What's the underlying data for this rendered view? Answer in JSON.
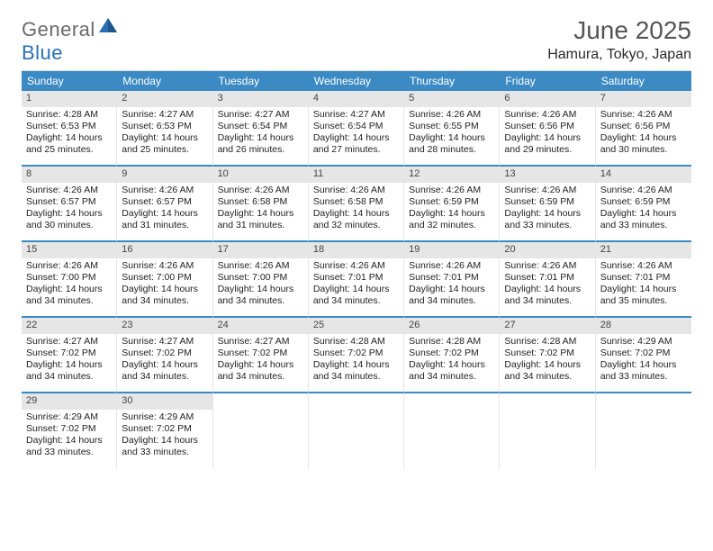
{
  "logo": {
    "word1": "General",
    "word2": "Blue"
  },
  "title": "June 2025",
  "location": "Hamura, Tokyo, Japan",
  "colors": {
    "headerBlue": "#3b8ac4",
    "daynumBg": "#e6e6e6",
    "logoGray": "#6a6a6a",
    "logoBlue": "#2a6fb3"
  },
  "weekdays": [
    "Sunday",
    "Monday",
    "Tuesday",
    "Wednesday",
    "Thursday",
    "Friday",
    "Saturday"
  ],
  "days": [
    {
      "n": "1",
      "sr": "4:28 AM",
      "ss": "6:53 PM",
      "dl": "14 hours and 25 minutes."
    },
    {
      "n": "2",
      "sr": "4:27 AM",
      "ss": "6:53 PM",
      "dl": "14 hours and 25 minutes."
    },
    {
      "n": "3",
      "sr": "4:27 AM",
      "ss": "6:54 PM",
      "dl": "14 hours and 26 minutes."
    },
    {
      "n": "4",
      "sr": "4:27 AM",
      "ss": "6:54 PM",
      "dl": "14 hours and 27 minutes."
    },
    {
      "n": "5",
      "sr": "4:26 AM",
      "ss": "6:55 PM",
      "dl": "14 hours and 28 minutes."
    },
    {
      "n": "6",
      "sr": "4:26 AM",
      "ss": "6:56 PM",
      "dl": "14 hours and 29 minutes."
    },
    {
      "n": "7",
      "sr": "4:26 AM",
      "ss": "6:56 PM",
      "dl": "14 hours and 30 minutes."
    },
    {
      "n": "8",
      "sr": "4:26 AM",
      "ss": "6:57 PM",
      "dl": "14 hours and 30 minutes."
    },
    {
      "n": "9",
      "sr": "4:26 AM",
      "ss": "6:57 PM",
      "dl": "14 hours and 31 minutes."
    },
    {
      "n": "10",
      "sr": "4:26 AM",
      "ss": "6:58 PM",
      "dl": "14 hours and 31 minutes."
    },
    {
      "n": "11",
      "sr": "4:26 AM",
      "ss": "6:58 PM",
      "dl": "14 hours and 32 minutes."
    },
    {
      "n": "12",
      "sr": "4:26 AM",
      "ss": "6:59 PM",
      "dl": "14 hours and 32 minutes."
    },
    {
      "n": "13",
      "sr": "4:26 AM",
      "ss": "6:59 PM",
      "dl": "14 hours and 33 minutes."
    },
    {
      "n": "14",
      "sr": "4:26 AM",
      "ss": "6:59 PM",
      "dl": "14 hours and 33 minutes."
    },
    {
      "n": "15",
      "sr": "4:26 AM",
      "ss": "7:00 PM",
      "dl": "14 hours and 34 minutes."
    },
    {
      "n": "16",
      "sr": "4:26 AM",
      "ss": "7:00 PM",
      "dl": "14 hours and 34 minutes."
    },
    {
      "n": "17",
      "sr": "4:26 AM",
      "ss": "7:00 PM",
      "dl": "14 hours and 34 minutes."
    },
    {
      "n": "18",
      "sr": "4:26 AM",
      "ss": "7:01 PM",
      "dl": "14 hours and 34 minutes."
    },
    {
      "n": "19",
      "sr": "4:26 AM",
      "ss": "7:01 PM",
      "dl": "14 hours and 34 minutes."
    },
    {
      "n": "20",
      "sr": "4:26 AM",
      "ss": "7:01 PM",
      "dl": "14 hours and 34 minutes."
    },
    {
      "n": "21",
      "sr": "4:26 AM",
      "ss": "7:01 PM",
      "dl": "14 hours and 35 minutes."
    },
    {
      "n": "22",
      "sr": "4:27 AM",
      "ss": "7:02 PM",
      "dl": "14 hours and 34 minutes."
    },
    {
      "n": "23",
      "sr": "4:27 AM",
      "ss": "7:02 PM",
      "dl": "14 hours and 34 minutes."
    },
    {
      "n": "24",
      "sr": "4:27 AM",
      "ss": "7:02 PM",
      "dl": "14 hours and 34 minutes."
    },
    {
      "n": "25",
      "sr": "4:28 AM",
      "ss": "7:02 PM",
      "dl": "14 hours and 34 minutes."
    },
    {
      "n": "26",
      "sr": "4:28 AM",
      "ss": "7:02 PM",
      "dl": "14 hours and 34 minutes."
    },
    {
      "n": "27",
      "sr": "4:28 AM",
      "ss": "7:02 PM",
      "dl": "14 hours and 34 minutes."
    },
    {
      "n": "28",
      "sr": "4:29 AM",
      "ss": "7:02 PM",
      "dl": "14 hours and 33 minutes."
    },
    {
      "n": "29",
      "sr": "4:29 AM",
      "ss": "7:02 PM",
      "dl": "14 hours and 33 minutes."
    },
    {
      "n": "30",
      "sr": "4:29 AM",
      "ss": "7:02 PM",
      "dl": "14 hours and 33 minutes."
    }
  ],
  "labels": {
    "sunrise": "Sunrise:",
    "sunset": "Sunset:",
    "daylight": "Daylight:"
  }
}
